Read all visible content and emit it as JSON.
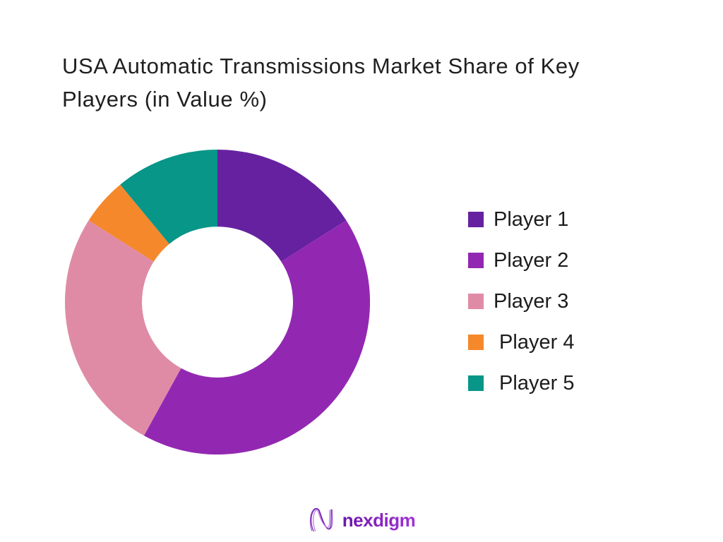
{
  "page": {
    "background": "#ffffff"
  },
  "header": {
    "title_line1": "USA Automatic Transmissions Market Share of Key",
    "title_line2": "Players (in Value %)"
  },
  "chart_data": {
    "type": "pie",
    "variant": "donut",
    "title": "USA Automatic Transmissions Market Share of Key Players (in Value %)",
    "unit": "value %",
    "start_angle_deg": 0,
    "direction": "clockwise",
    "inner_radius_ratio": 0.495,
    "data_labels": "none",
    "legend_position": "right",
    "slices": [
      {
        "label": "Player 1",
        "value": 16,
        "color": "#6621a0"
      },
      {
        "label": "Player 2",
        "value": 42,
        "color": "#9228b2"
      },
      {
        "label": "Player 3",
        "value": 26,
        "color": "#df8ba6"
      },
      {
        "label": "Player 4",
        "value": 5,
        "color": "#f5882b"
      },
      {
        "label": "Player 5",
        "value": 11,
        "color": "#079687"
      }
    ]
  },
  "legend": {
    "items": [
      "Player 1",
      "Player 2",
      "Player 3",
      " Player 4",
      " Player 5"
    ]
  },
  "footer": {
    "logo_text": "nexdigm",
    "logo_icon": "nexdigm-waves-icon",
    "logo_gradient_start": "#6d17a8",
    "logo_gradient_end": "#a232d8",
    "logo_mark_colors": [
      "#8a2bc9",
      "#5f17a0",
      "#b565e8"
    ]
  }
}
